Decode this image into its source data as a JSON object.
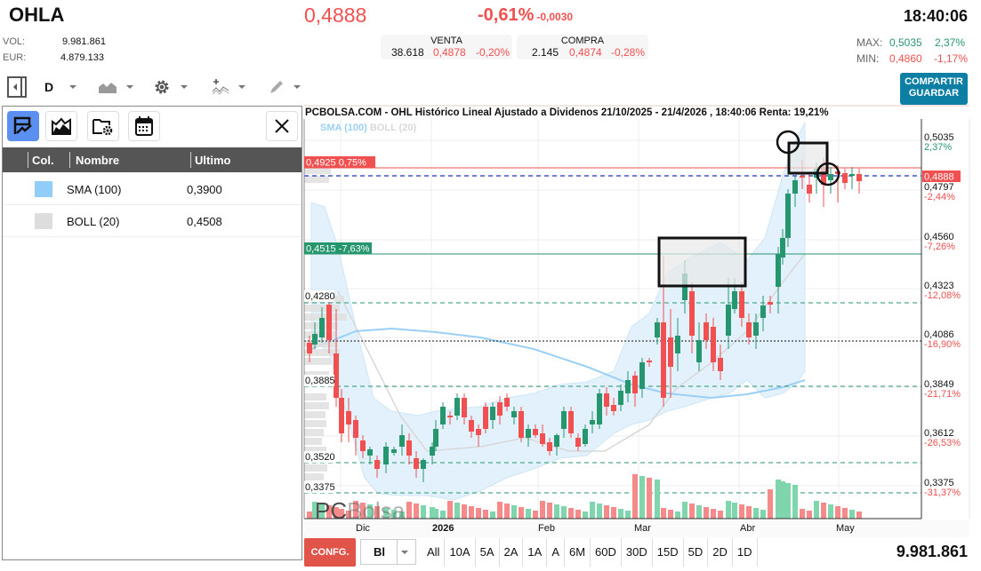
{
  "header": {
    "ticker": "OHLA",
    "price": "0,4888",
    "change_pct": "-0,61%",
    "change_abs": "-0,0030",
    "time": "18:40:06",
    "vol_label": "VOL:",
    "vol_value": "9.981.861",
    "eur_label": "EUR:",
    "eur_value": "4.879.133",
    "venta": {
      "label": "VENTA",
      "qty": "38.618",
      "price": "0,4878",
      "pct": "-0,20%"
    },
    "compra": {
      "label": "COMPRA",
      "qty": "2.145",
      "price": "0,4874",
      "pct": "-0,28%"
    },
    "max_label": "MAX:",
    "max_value": "0,5035",
    "max_pct": "2,37%",
    "min_label": "MIN:",
    "min_value": "0,4860",
    "min_pct": "-1,17%"
  },
  "toolbar": {
    "period": "D",
    "share_line1": "COMPARTIR",
    "share_line2": "GUARDAR"
  },
  "panel": {
    "columns": [
      "Col.",
      "Nombre",
      "Ultimo"
    ],
    "rows": [
      {
        "color": "#90cdf8",
        "name": "SMA (100)",
        "value": "0,3900"
      },
      {
        "color": "#dddddd",
        "name": "BOLL (20)",
        "value": "0,4508"
      }
    ]
  },
  "chart": {
    "title": "PCBOLSA.COM - OHL Histórico Lineal Ajustado a Dividenos 21/10/2025 - 21/4/2026 , 18:40:06 Renta: 19,21%",
    "legend_sma": "SMA (100)",
    "legend_boll": "BOLL (20)",
    "watermark_a": "PC",
    "watermark_b": "Bolsa",
    "current_price_tag": "0,4888",
    "line_top_label": "0,4925  0,75%",
    "line_mid_label": "0,4515  -7,63%",
    "left_levels": [
      "0,4280",
      "0,3885",
      "0,3520",
      "0,3375"
    ],
    "y_axis": [
      {
        "v": "0,5035",
        "p": "2,37%",
        "pos": true
      },
      {
        "v": "0,4797",
        "p": "-2,44%",
        "pos": false
      },
      {
        "v": "0,4560",
        "p": "-7,26%",
        "pos": false
      },
      {
        "v": "0,4323",
        "p": "-12,08%",
        "pos": false
      },
      {
        "v": "0,4086",
        "p": "-16,90%",
        "pos": false
      },
      {
        "v": "0,3849",
        "p": "-21,71%",
        "pos": false
      },
      {
        "v": "0,3612",
        "p": "-26,53%",
        "pos": false
      },
      {
        "v": "0,3375",
        "p": "-31,37%",
        "pos": false
      }
    ],
    "x_axis": [
      "Dic",
      "2026",
      "Feb",
      "Mar",
      "Abr",
      "May"
    ]
  },
  "footer": {
    "confg": "CONFG.",
    "select_value": "Bl",
    "ranges": [
      "All",
      "10A",
      "5A",
      "2A",
      "1A",
      "A",
      "6M",
      "60D",
      "30D",
      "15D",
      "5D",
      "2D",
      "1D"
    ],
    "volume": "9.981.861"
  }
}
